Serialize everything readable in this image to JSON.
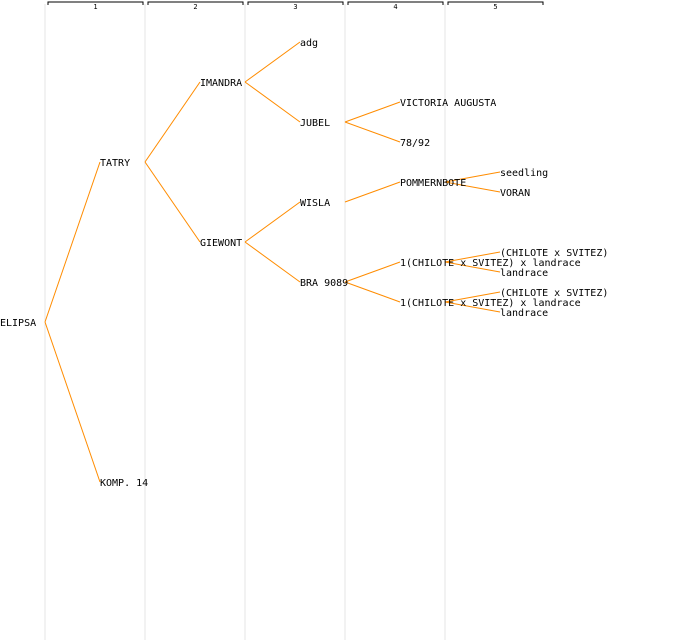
{
  "colors": {
    "edge": "#ff8c00",
    "column_line": "#e6e6e6",
    "header_bracket": "#000000",
    "text": "#000000"
  },
  "generations": [
    "1",
    "2",
    "3",
    "4",
    "5"
  ],
  "pedigree": {
    "root": "ELIPSA",
    "nodes": [
      {
        "id": "n0",
        "label": "ELIPSA",
        "gen": 0,
        "parent": null
      },
      {
        "id": "n1",
        "label": "TATRY",
        "gen": 1,
        "parent": "n0"
      },
      {
        "id": "n2",
        "label": "KOMP. 14",
        "gen": 1,
        "parent": "n0"
      },
      {
        "id": "n3",
        "label": "IMANDRA",
        "gen": 2,
        "parent": "n1"
      },
      {
        "id": "n4",
        "label": "GIEWONT",
        "gen": 2,
        "parent": "n1"
      },
      {
        "id": "n5",
        "label": "adg",
        "gen": 3,
        "parent": "n3"
      },
      {
        "id": "n6",
        "label": "JUBEL",
        "gen": 3,
        "parent": "n3"
      },
      {
        "id": "n7",
        "label": "WISLA",
        "gen": 3,
        "parent": "n4"
      },
      {
        "id": "n8",
        "label": "BRA 9089",
        "gen": 3,
        "parent": "n4"
      },
      {
        "id": "n9",
        "label": "VICTORIA AUGUSTA",
        "gen": 4,
        "parent": "n6"
      },
      {
        "id": "n10",
        "label": "78/92",
        "gen": 4,
        "parent": "n6"
      },
      {
        "id": "n11",
        "label": "POMMERNBOTE",
        "gen": 4,
        "parent": "n7"
      },
      {
        "id": "n12",
        "label": "1(CHILOTE x SVITEZ) x landrace",
        "gen": 4,
        "parent": "n8"
      },
      {
        "id": "n13",
        "label": "1(CHILOTE x SVITEZ) x landrace",
        "gen": 4,
        "parent": "n8"
      },
      {
        "id": "n14",
        "label": "seedling",
        "gen": 5,
        "parent": "n11"
      },
      {
        "id": "n15",
        "label": "VORAN",
        "gen": 5,
        "parent": "n11"
      },
      {
        "id": "n16",
        "label": "(CHILOTE x SVITEZ)",
        "gen": 5,
        "parent": "n12"
      },
      {
        "id": "n17",
        "label": "landrace",
        "gen": 5,
        "parent": "n12"
      },
      {
        "id": "n18",
        "label": "(CHILOTE x SVITEZ)",
        "gen": 5,
        "parent": "n13"
      },
      {
        "id": "n19",
        "label": "landrace",
        "gen": 5,
        "parent": "n13"
      }
    ]
  }
}
